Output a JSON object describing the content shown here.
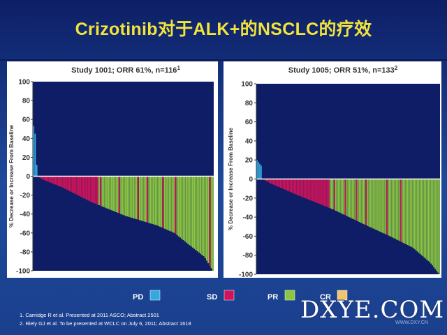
{
  "slide": {
    "title": "Crizotinib对于ALK+的NSCLC的疗效",
    "footnotes": [
      "1. Camidge R et al. Presented at 2011 ASCO; Abstract 2501",
      "2. Riely GJ et al. To be presented at WCLC on July 6, 2011; Abstract 1618"
    ],
    "watermark": "DXYE.COM",
    "watermark_sub": "WWW.DXY.CN"
  },
  "colors": {
    "PD": "#35a8e0",
    "SD": "#d0145a",
    "PR": "#8cc63f",
    "CR": "#f2c46d",
    "plot_bg": "#0f1d66",
    "title": "#f3e43b"
  },
  "legend": {
    "items": [
      {
        "label": "PD",
        "color": "#35a8e0"
      },
      {
        "label": "SD",
        "color": "#d0145a"
      },
      {
        "label": "PR",
        "color": "#8cc63f"
      },
      {
        "label": "CR",
        "color": "#f2c46d"
      }
    ]
  },
  "chart_data": [
    {
      "type": "bar",
      "subtype": "waterfall",
      "title": "Study 1001; ORR 61%, n=116",
      "title_superscript": "1",
      "xlabel": "",
      "ylabel": "% Decrease or Increase From Baseline",
      "ylim": [
        -100,
        100
      ],
      "yticks": [
        "100",
        "80",
        "60",
        "40",
        "20",
        "0",
        "-20",
        "-40",
        "-60",
        "-80",
        "-100"
      ],
      "n_bars": 116,
      "pd_values": [
        53,
        45,
        12
      ],
      "sd_ranks": [
        3,
        5,
        6,
        7,
        8,
        9,
        10,
        11,
        12,
        13,
        14,
        16,
        18,
        20,
        22,
        24,
        28,
        36,
        40,
        52,
        64,
        70,
        80,
        88,
        110
      ],
      "sd_color": "#d0145a",
      "segments": [
        {
          "to": 0,
          "value": 0
        },
        {
          "to": 0.02,
          "value": -3
        },
        {
          "to": 0.14,
          "value": -12
        },
        {
          "to": 0.3,
          "value": -27
        },
        {
          "to": 0.5,
          "value": -42
        },
        {
          "to": 0.68,
          "value": -52
        },
        {
          "to": 0.78,
          "value": -60
        },
        {
          "to": 0.86,
          "value": -72
        },
        {
          "to": 0.95,
          "value": -85
        },
        {
          "to": 1,
          "value": -100
        }
      ]
    },
    {
      "type": "bar",
      "subtype": "waterfall",
      "title": "Study 1005; ORR 51%, n=133",
      "title_superscript": "2",
      "xlabel": "",
      "ylabel": "% Decrease or Increase From Baseline",
      "ylim": [
        -100,
        100
      ],
      "yticks": [
        "100",
        "80",
        "60",
        "40",
        "20",
        "0",
        "-20",
        "-40",
        "-60",
        "-80",
        "-100"
      ],
      "n_bars": 133,
      "pd_values": [
        20,
        18,
        16,
        14
      ],
      "sd_ranks": [
        3,
        5,
        6,
        7,
        9,
        10,
        11,
        13,
        14,
        15,
        17,
        19,
        21,
        24,
        27,
        30,
        34,
        38,
        42,
        45,
        48,
        52,
        60,
        68,
        75,
        90,
        100
      ],
      "sd_color": "#d0145a",
      "segments": [
        {
          "to": 0,
          "value": 0
        },
        {
          "to": 0.05,
          "value": -5
        },
        {
          "to": 0.2,
          "value": -17
        },
        {
          "to": 0.4,
          "value": -32
        },
        {
          "to": 0.58,
          "value": -48
        },
        {
          "to": 0.72,
          "value": -60
        },
        {
          "to": 0.85,
          "value": -72
        },
        {
          "to": 0.95,
          "value": -88
        },
        {
          "to": 1,
          "value": -100
        }
      ]
    }
  ]
}
